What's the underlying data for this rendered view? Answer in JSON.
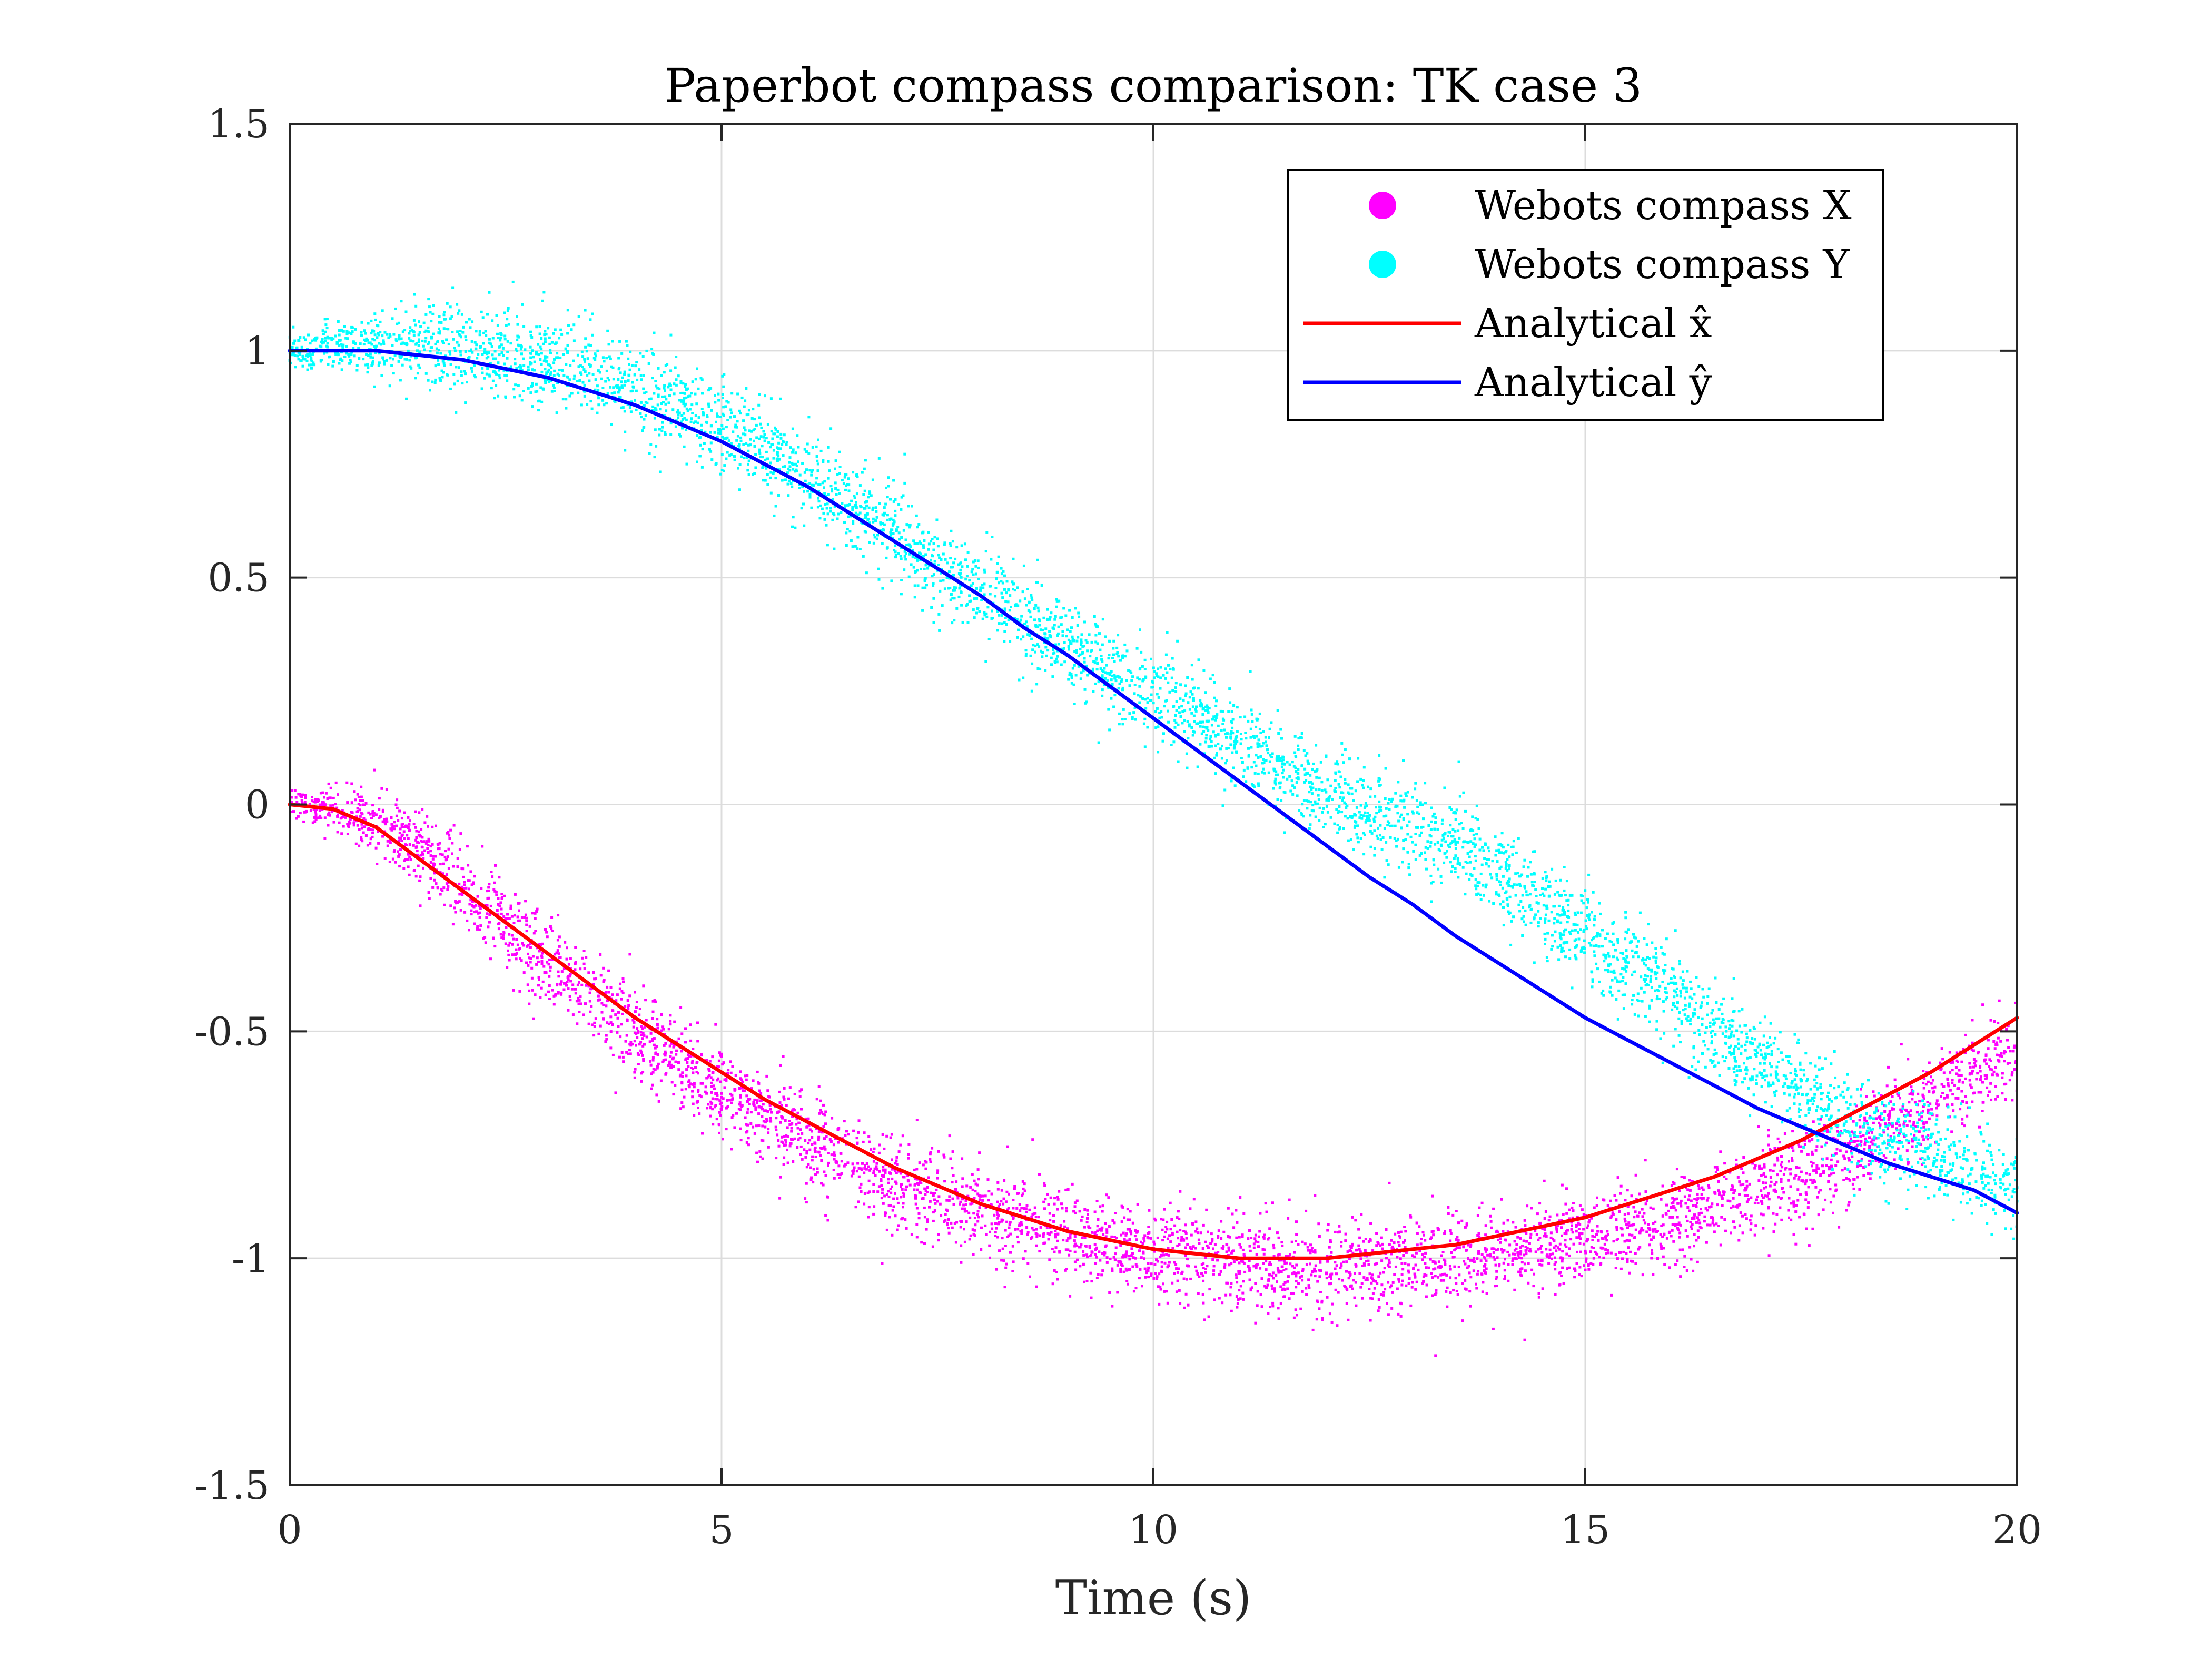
{
  "chart_data": {
    "type": "line",
    "title": "Paperbot compass comparison: TK case 3",
    "xlabel": "Time (s)",
    "ylabel": "",
    "xlim": [
      0,
      20
    ],
    "ylim": [
      -1.5,
      1.5
    ],
    "xticks": [
      0,
      5,
      10,
      15,
      20
    ],
    "yticks": [
      -1.5,
      -1,
      -0.5,
      0,
      0.5,
      1,
      1.5
    ],
    "xtick_labels": [
      "0",
      "5",
      "10",
      "15",
      "20"
    ],
    "ytick_labels": [
      "-1.5",
      "-1",
      "-0.5",
      "0",
      "0.5",
      "1",
      "1.5"
    ],
    "grid": true,
    "legend_position": "top-right",
    "series": [
      {
        "name": "Webots compass X",
        "kind": "scatter",
        "color": "#ff00ff",
        "noise": 0.05,
        "x": [
          0,
          0.5,
          1,
          1.5,
          2,
          2.5,
          3,
          3.5,
          4,
          4.5,
          5,
          5.5,
          6,
          6.5,
          7,
          7.5,
          8,
          8.5,
          9,
          9.5,
          10,
          10.5,
          11,
          11.5,
          12,
          12.5,
          13,
          13.5,
          14,
          14.5,
          15,
          15.5,
          16,
          16.5,
          17,
          17.5,
          18,
          18.5,
          19,
          19.5,
          20
        ],
        "y": [
          0,
          -0.01,
          -0.04,
          -0.1,
          -0.18,
          -0.27,
          -0.35,
          -0.42,
          -0.5,
          -0.57,
          -0.63,
          -0.69,
          -0.74,
          -0.79,
          -0.83,
          -0.86,
          -0.89,
          -0.92,
          -0.95,
          -0.97,
          -0.99,
          -1.0,
          -1.01,
          -1.02,
          -1.02,
          -1.02,
          -1.01,
          -1.0,
          -0.99,
          -0.97,
          -0.96,
          -0.94,
          -0.92,
          -0.89,
          -0.85,
          -0.82,
          -0.77,
          -0.71,
          -0.65,
          -0.59,
          -0.54
        ]
      },
      {
        "name": "Webots compass Y",
        "kind": "scatter",
        "color": "#00ffff",
        "noise": 0.05,
        "x": [
          0,
          0.5,
          1,
          1.5,
          2,
          2.5,
          3,
          3.5,
          4,
          4.5,
          5,
          5.5,
          6,
          6.5,
          7,
          7.5,
          8,
          8.5,
          9,
          9.5,
          10,
          10.5,
          11,
          11.5,
          12,
          12.5,
          13,
          13.5,
          14,
          14.5,
          15,
          15.5,
          16,
          16.5,
          17,
          17.5,
          18,
          18.5,
          19,
          19.5,
          20
        ],
        "y": [
          1.0,
          1.01,
          1.01,
          1.02,
          1.01,
          0.99,
          0.97,
          0.95,
          0.92,
          0.88,
          0.83,
          0.78,
          0.72,
          0.66,
          0.6,
          0.53,
          0.47,
          0.41,
          0.35,
          0.3,
          0.25,
          0.2,
          0.14,
          0.08,
          0.02,
          -0.02,
          -0.05,
          -0.09,
          -0.15,
          -0.22,
          -0.29,
          -0.36,
          -0.43,
          -0.5,
          -0.57,
          -0.63,
          -0.69,
          -0.73,
          -0.77,
          -0.81,
          -0.85
        ]
      },
      {
        "name": "Analytical x̂",
        "kind": "line",
        "color": "#ff0000",
        "x": [
          0,
          0.5,
          1,
          1.5,
          2,
          2.5,
          3,
          3.5,
          4,
          4.5,
          5,
          5.5,
          6,
          6.5,
          7,
          7.5,
          8,
          8.5,
          9,
          9.5,
          10,
          10.5,
          11,
          11.5,
          12,
          12.5,
          13,
          13.5,
          14,
          14.5,
          15,
          15.5,
          16,
          16.5,
          17,
          17.5,
          18,
          18.5,
          19,
          19.5,
          20
        ],
        "y": [
          0,
          -0.01,
          -0.05,
          -0.12,
          -0.19,
          -0.26,
          -0.33,
          -0.4,
          -0.47,
          -0.53,
          -0.59,
          -0.65,
          -0.7,
          -0.75,
          -0.8,
          -0.84,
          -0.88,
          -0.91,
          -0.94,
          -0.96,
          -0.98,
          -0.99,
          -1.0,
          -1.0,
          -1.0,
          -0.99,
          -0.98,
          -0.97,
          -0.95,
          -0.93,
          -0.91,
          -0.88,
          -0.85,
          -0.82,
          -0.78,
          -0.74,
          -0.69,
          -0.64,
          -0.59,
          -0.53,
          -0.47
        ]
      },
      {
        "name": "Analytical ŷ",
        "kind": "line",
        "color": "#0000ff",
        "x": [
          0,
          0.5,
          1,
          1.5,
          2,
          2.5,
          3,
          3.5,
          4,
          4.5,
          5,
          5.5,
          6,
          6.5,
          7,
          7.5,
          8,
          8.5,
          9,
          9.5,
          10,
          10.5,
          11,
          11.5,
          12,
          12.5,
          13,
          13.5,
          14,
          14.5,
          15,
          15.5,
          16,
          16.5,
          17,
          17.5,
          18,
          18.5,
          19,
          19.5,
          20
        ],
        "y": [
          1.0,
          1.0,
          1.0,
          0.99,
          0.98,
          0.96,
          0.94,
          0.91,
          0.88,
          0.84,
          0.8,
          0.75,
          0.7,
          0.64,
          0.58,
          0.52,
          0.46,
          0.39,
          0.33,
          0.26,
          0.19,
          0.12,
          0.05,
          -0.02,
          -0.09,
          -0.16,
          -0.22,
          -0.29,
          -0.35,
          -0.41,
          -0.47,
          -0.52,
          -0.57,
          -0.62,
          -0.67,
          -0.71,
          -0.75,
          -0.79,
          -0.82,
          -0.85,
          -0.9
        ]
      }
    ]
  }
}
